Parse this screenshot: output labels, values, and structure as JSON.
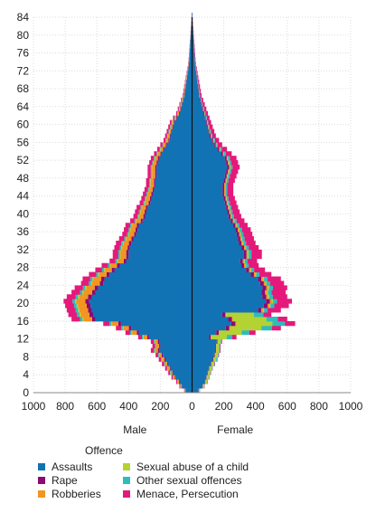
{
  "chart_data": {
    "type": "bar",
    "orientation": "horizontal-population-pyramid",
    "stacked": true,
    "categories": [
      0,
      1,
      2,
      3,
      4,
      5,
      6,
      7,
      8,
      9,
      10,
      11,
      12,
      13,
      14,
      15,
      16,
      17,
      18,
      19,
      20,
      21,
      22,
      23,
      24,
      25,
      26,
      27,
      28,
      29,
      30,
      31,
      32,
      33,
      34,
      35,
      36,
      37,
      38,
      39,
      40,
      41,
      42,
      43,
      44,
      45,
      46,
      47,
      48,
      49,
      50,
      51,
      52,
      53,
      54,
      55,
      56,
      57,
      58,
      59,
      60,
      61,
      62,
      63,
      64,
      65,
      66,
      67,
      68,
      69,
      70,
      71,
      72,
      73,
      74,
      75,
      76,
      77,
      78,
      79,
      80,
      81,
      82,
      83,
      84
    ],
    "male_totals": [
      50,
      80,
      100,
      130,
      150,
      170,
      190,
      210,
      230,
      260,
      250,
      260,
      340,
      420,
      480,
      560,
      760,
      780,
      790,
      800,
      810,
      790,
      760,
      740,
      700,
      690,
      650,
      610,
      570,
      520,
      500,
      500,
      490,
      480,
      460,
      440,
      430,
      420,
      390,
      370,
      360,
      350,
      330,
      320,
      310,
      300,
      290,
      290,
      280,
      280,
      280,
      270,
      260,
      240,
      220,
      200,
      180,
      170,
      160,
      150,
      140,
      120,
      100,
      90,
      80,
      70,
      60,
      55,
      50,
      45,
      40,
      35,
      30,
      25,
      22,
      20,
      18,
      16,
      14,
      12,
      10,
      8,
      6,
      4,
      3
    ],
    "female_totals": [
      50,
      80,
      100,
      110,
      120,
      130,
      145,
      160,
      170,
      180,
      180,
      190,
      280,
      400,
      560,
      650,
      600,
      500,
      560,
      610,
      630,
      600,
      590,
      600,
      580,
      560,
      500,
      460,
      420,
      410,
      440,
      440,
      420,
      400,
      390,
      380,
      370,
      350,
      330,
      310,
      300,
      290,
      280,
      270,
      260,
      260,
      260,
      270,
      280,
      290,
      300,
      290,
      280,
      250,
      220,
      190,
      170,
      150,
      140,
      130,
      120,
      110,
      100,
      90,
      80,
      70,
      60,
      55,
      50,
      45,
      40,
      35,
      30,
      25,
      22,
      20,
      18,
      16,
      14,
      12,
      10,
      8,
      6,
      4,
      3
    ],
    "male_series": [
      {
        "name": "Assaults",
        "color": "#1273b4",
        "share": 0.8
      },
      {
        "name": "Rape",
        "color": "#8b0a73",
        "share": 0.03
      },
      {
        "name": "Robberies",
        "color": "#f39520",
        "share": 0.07
      },
      {
        "name": "Sexual abuse of a child",
        "color": "#b4d233",
        "share": 0.01
      },
      {
        "name": "Other sexual offences",
        "color": "#2ebcbc",
        "share": 0.02
      },
      {
        "name": "Menace, Persecution",
        "color": "#e5197a",
        "share": 0.07
      }
    ],
    "female_shares_by_age": {
      "children_0_11": [
        0.82,
        0.02,
        0.01,
        0.1,
        0.03,
        0.02
      ],
      "teens_12_17": [
        0.38,
        0.04,
        0.01,
        0.35,
        0.12,
        0.1
      ],
      "adults_18_plus": [
        0.74,
        0.04,
        0.02,
        0.01,
        0.04,
        0.15
      ]
    },
    "xlim": [
      -1000,
      1000
    ],
    "ylim": [
      0,
      84
    ],
    "x_ticks": [
      -1000,
      -800,
      -600,
      -400,
      -200,
      0,
      200,
      400,
      600,
      800,
      1000
    ],
    "x_tick_labels": [
      "1000",
      "800",
      "600",
      "400",
      "200",
      "0",
      "200",
      "400",
      "600",
      "800",
      "1000"
    ],
    "y_ticks": [
      0,
      4,
      8,
      12,
      16,
      20,
      24,
      28,
      32,
      36,
      40,
      44,
      48,
      52,
      56,
      60,
      64,
      68,
      72,
      76,
      80,
      84
    ],
    "side_labels": {
      "left": "Male",
      "right": "Female"
    },
    "grid": true,
    "legend_placement": "bottom"
  },
  "legend": {
    "title": "Offence",
    "items": [
      {
        "label": "Assaults",
        "color": "#1273b4"
      },
      {
        "label": "Sexual abuse of a child",
        "color": "#b4d233"
      },
      {
        "label": "Rape",
        "color": "#8b0a73"
      },
      {
        "label": "Other sexual offences",
        "color": "#2ebcbc"
      },
      {
        "label": "Robberies",
        "color": "#f39520"
      },
      {
        "label": "Menace, Persecution",
        "color": "#e5197a"
      }
    ]
  }
}
